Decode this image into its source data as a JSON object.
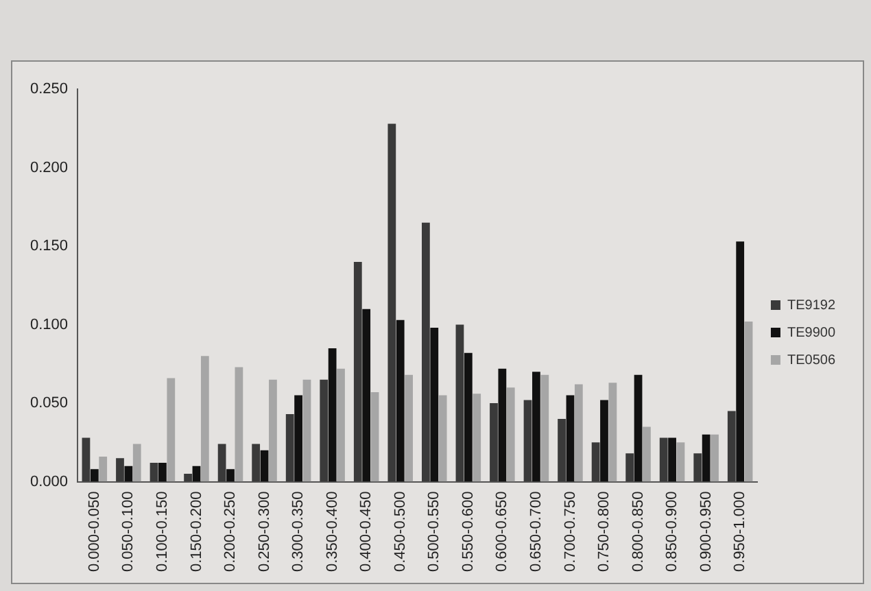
{
  "chart_data": {
    "type": "bar",
    "categories": [
      "0.000-0.050",
      "0.050-0.100",
      "0.100-0.150",
      "0.150-0.200",
      "0.200-0.250",
      "0.250-0.300",
      "0.300-0.350",
      "0.350-0.400",
      "0.400-0.450",
      "0.450-0.500",
      "0.500-0.550",
      "0.550-0.600",
      "0.600-0.650",
      "0.650-0.700",
      "0.700-0.750",
      "0.750-0.800",
      "0.800-0.850",
      "0.850-0.900",
      "0.900-0.950",
      "0.950-1.000"
    ],
    "series": [
      {
        "name": "TE9192",
        "color": "#3a3a3a",
        "values": [
          0.028,
          0.015,
          0.012,
          0.005,
          0.024,
          0.024,
          0.043,
          0.065,
          0.14,
          0.228,
          0.165,
          0.1,
          0.05,
          0.052,
          0.04,
          0.025,
          0.018,
          0.028,
          0.018,
          0.045
        ]
      },
      {
        "name": "TE9900",
        "color": "#111111",
        "values": [
          0.008,
          0.01,
          0.012,
          0.01,
          0.008,
          0.02,
          0.055,
          0.085,
          0.11,
          0.103,
          0.098,
          0.082,
          0.072,
          0.07,
          0.055,
          0.052,
          0.068,
          0.028,
          0.03,
          0.153
        ]
      },
      {
        "name": "TE0506",
        "color": "#a6a6a6",
        "values": [
          0.016,
          0.024,
          0.066,
          0.08,
          0.073,
          0.065,
          0.065,
          0.072,
          0.057,
          0.068,
          0.055,
          0.056,
          0.06,
          0.068,
          0.062,
          0.063,
          0.035,
          0.025,
          0.03,
          0.102
        ]
      }
    ],
    "ylim": [
      0,
      0.25
    ],
    "yticks": [
      {
        "value": 0,
        "label": "0.000"
      },
      {
        "value": 0.05,
        "label": "0.050"
      },
      {
        "value": 0.1,
        "label": "0.100"
      },
      {
        "value": 0.15,
        "label": "0.150"
      },
      {
        "value": 0.2,
        "label": "0.200"
      },
      {
        "value": 0.25,
        "label": "0.250"
      }
    ],
    "grid": false,
    "legend": "right"
  }
}
